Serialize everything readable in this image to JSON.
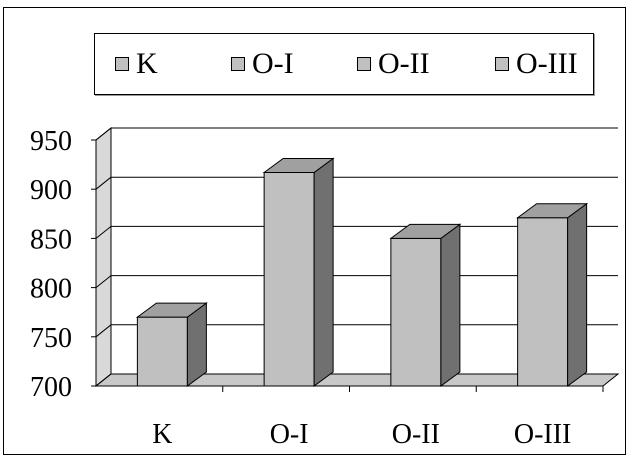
{
  "chart_data": {
    "type": "bar",
    "categories": [
      "K",
      "O-I",
      "O-II",
      "O-III"
    ],
    "series": [
      {
        "values": [
          770,
          917,
          850,
          871
        ]
      }
    ],
    "legend": [
      "K",
      "O-I",
      "O-II",
      "O-III"
    ],
    "legend_position": "top",
    "yticks": [
      700,
      750,
      800,
      850,
      900,
      950
    ],
    "ylim": [
      700,
      950
    ],
    "grid": true,
    "style": "3d",
    "colors": {
      "bar_front": "#c0c0c0",
      "bar_side": "#707070",
      "bar_top": "#a0a0a0",
      "wall": "#d9d9d9",
      "floor": "#c8c8c8"
    }
  }
}
